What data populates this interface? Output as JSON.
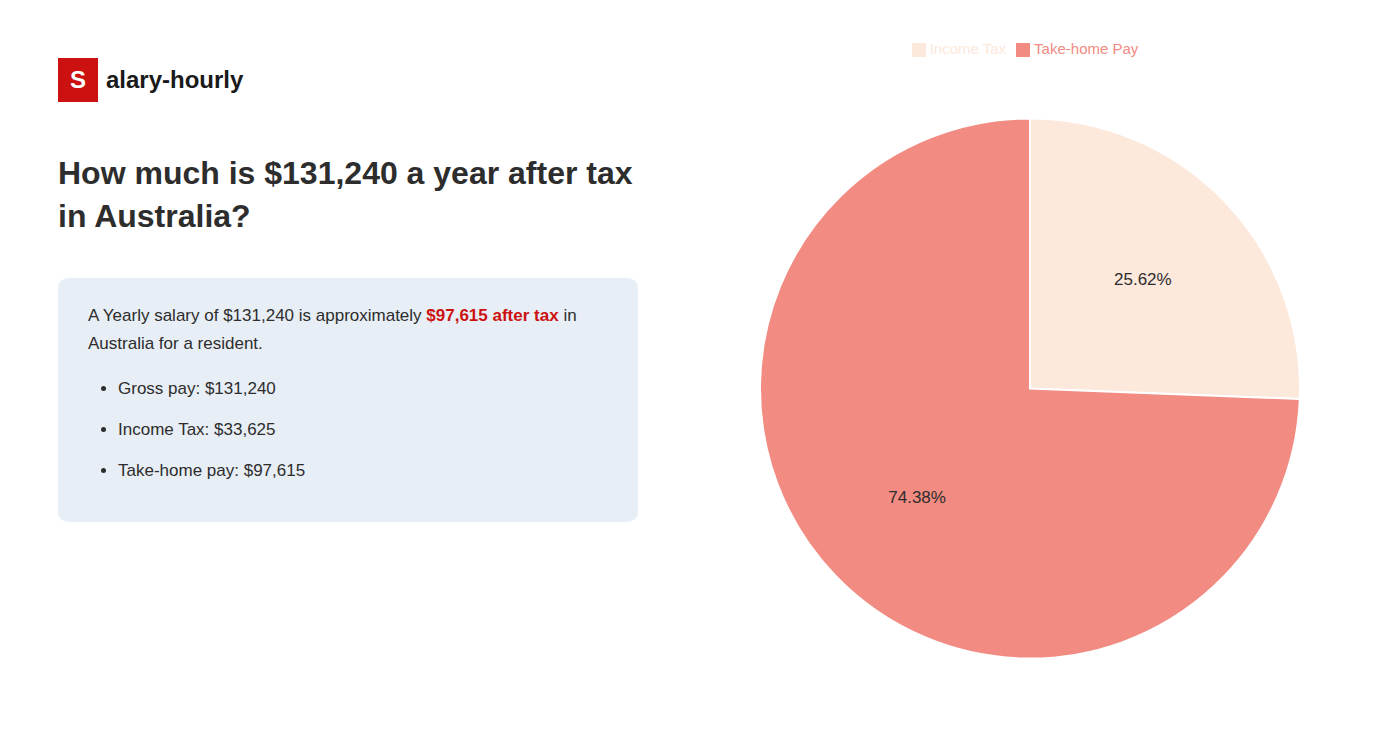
{
  "chart_data": {
    "type": "pie",
    "title": "How much is $131,240 a year after tax in Australia?",
    "annotations": [
      {
        "text": "S",
        "color": "#cc1111"
      },
      {
        "text": "alary-hourly"
      },
      {
        "text": "A Yearly salary of $131,240 is approximately "
      },
      {
        "text": "$97,615 after tax",
        "color": "#cc1111"
      },
      {
        "text": "in Australia for a resident."
      },
      {
        "text": "Gross pay: $131,240"
      },
      {
        "text": "Income Tax: $33,625"
      },
      {
        "text": "Take-home pay: $97,615"
      }
    ],
    "categories": [
      "Income Tax",
      "Take-home Pay"
    ],
    "values": [
      25.62,
      74.38
    ],
    "value_labels": [
      "25.62%",
      "74.38%"
    ],
    "colors": [
      "#fde8dc",
      "#f28b82"
    ],
    "data_labels": true,
    "legend": "top"
  }
}
